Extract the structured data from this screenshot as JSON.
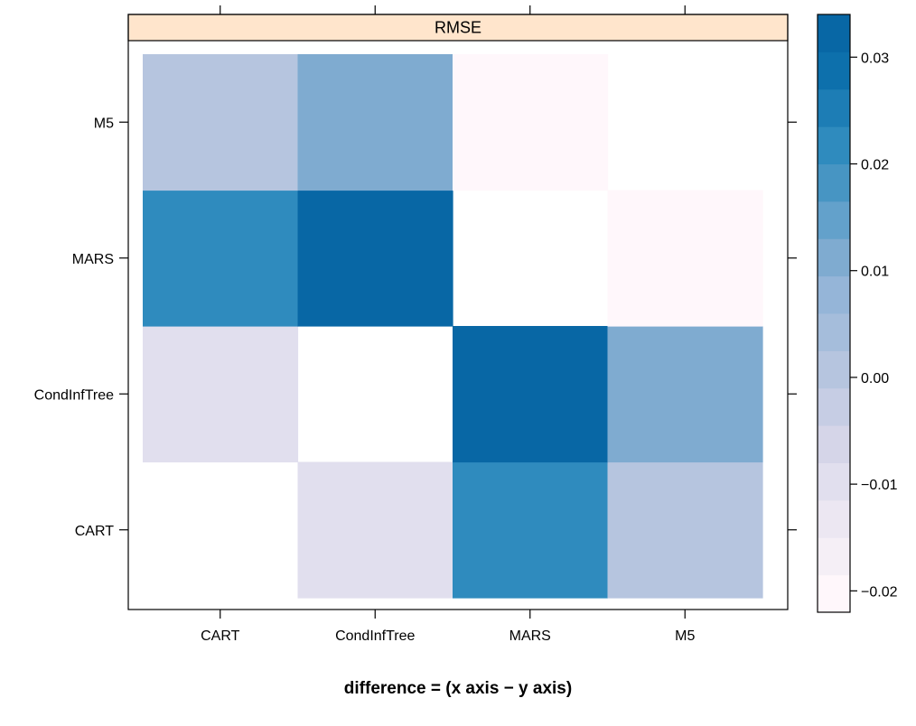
{
  "chart_data": {
    "type": "heatmap",
    "title": "RMSE",
    "xlabel": "difference = (x axis − y axis)",
    "x_categories": [
      "CART",
      "CondInfTree",
      "MARS",
      "M5"
    ],
    "y_categories": [
      "CART",
      "CondInfTree",
      "MARS",
      "M5"
    ],
    "cells": [
      {
        "x": "CART",
        "y": "CART",
        "value": null
      },
      {
        "x": "CondInfTree",
        "y": "CART",
        "value": -0.008
      },
      {
        "x": "MARS",
        "y": "CART",
        "value": 0.022
      },
      {
        "x": "M5",
        "y": "CART",
        "value": 0.002
      },
      {
        "x": "CART",
        "y": "CondInfTree",
        "value": -0.008
      },
      {
        "x": "CondInfTree",
        "y": "CondInfTree",
        "value": null
      },
      {
        "x": "MARS",
        "y": "CondInfTree",
        "value": 0.031
      },
      {
        "x": "M5",
        "y": "CondInfTree",
        "value": 0.012
      },
      {
        "x": "CART",
        "y": "MARS",
        "value": 0.022
      },
      {
        "x": "CondInfTree",
        "y": "MARS",
        "value": 0.031
      },
      {
        "x": "MARS",
        "y": "MARS",
        "value": null
      },
      {
        "x": "M5",
        "y": "MARS",
        "value": -0.019
      },
      {
        "x": "CART",
        "y": "M5",
        "value": 0.002
      },
      {
        "x": "CondInfTree",
        "y": "M5",
        "value": 0.012
      },
      {
        "x": "MARS",
        "y": "M5",
        "value": -0.019
      },
      {
        "x": "M5",
        "y": "M5",
        "value": null
      }
    ],
    "colorbar": {
      "range": [
        -0.022,
        0.034
      ],
      "ticks": [
        -0.02,
        -0.01,
        0.0,
        0.01,
        0.02,
        0.03
      ],
      "tick_labels": [
        "−0.02",
        "−0.01",
        "0.00",
        "0.01",
        "0.02",
        "0.03"
      ],
      "colors": [
        "#fff7fb",
        "#f5eff6",
        "#ece7f2",
        "#e1dfee",
        "#d5d5e8",
        "#c6cde4",
        "#b6c5df",
        "#a5bddb",
        "#95b5d8",
        "#7fabd0",
        "#63a1cb",
        "#4795c3",
        "#2f8bbe",
        "#1d7db5",
        "#0d70ac",
        "#0867a5"
      ]
    },
    "strip_color": "#ffe5cc",
    "legend_placement": "right",
    "grid": false
  }
}
